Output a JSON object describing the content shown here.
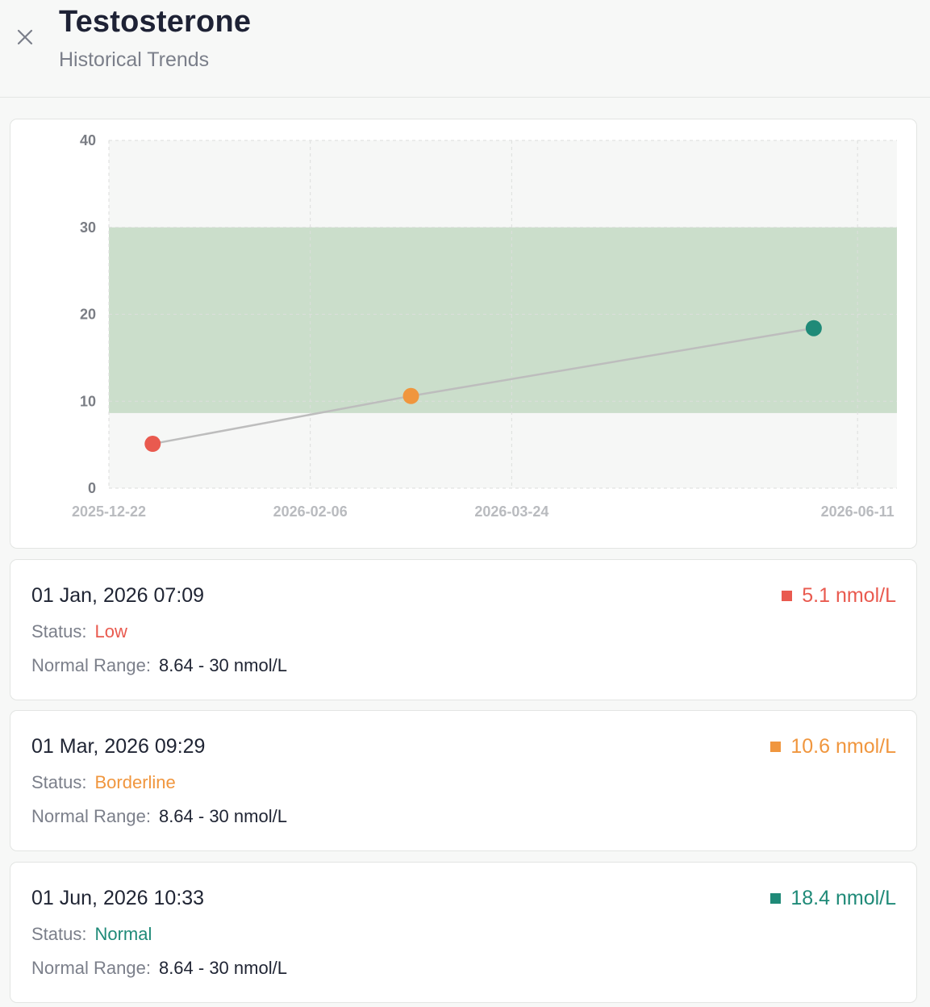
{
  "header": {
    "title": "Testosterone",
    "subtitle": "Historical Trends",
    "close_icon": "close-icon"
  },
  "colors": {
    "low": "#e95a4f",
    "borderline": "#f0963e",
    "normal": "#1f8a78",
    "normal_band": "#cbdecb",
    "line": "#bdbdbd"
  },
  "chart_data": {
    "type": "line",
    "x_ticks": [
      "2025-12-22",
      "2026-02-06",
      "2026-03-24",
      "2026-06-11"
    ],
    "y_ticks": [
      "0",
      "10",
      "20",
      "30",
      "40"
    ],
    "ylim": [
      0,
      40
    ],
    "xlim": [
      "2025-12-22",
      "2026-06-20"
    ],
    "normal_band": [
      8.64,
      30
    ],
    "grid": true,
    "points": [
      {
        "x": "2026-01-01",
        "y": 5.1,
        "status": "low"
      },
      {
        "x": "2026-03-01",
        "y": 10.6,
        "status": "borderline"
      },
      {
        "x": "2026-06-01",
        "y": 18.4,
        "status": "normal"
      }
    ]
  },
  "readings": [
    {
      "date": "01 Jan, 2026 07:09",
      "value": "5.1 nmol/L",
      "status_label": "Status:",
      "status": "Low",
      "range_label": "Normal Range:",
      "range": "8.64 - 30 nmol/L",
      "color": "#e95a4f"
    },
    {
      "date": "01 Mar, 2026 09:29",
      "value": "10.6 nmol/L",
      "status_label": "Status:",
      "status": "Borderline",
      "range_label": "Normal Range:",
      "range": "8.64 - 30 nmol/L",
      "color": "#f0963e"
    },
    {
      "date": "01 Jun, 2026 10:33",
      "value": "18.4 nmol/L",
      "status_label": "Status:",
      "status": "Normal",
      "range_label": "Normal Range:",
      "range": "8.64 - 30 nmol/L",
      "color": "#1f8a78"
    }
  ]
}
